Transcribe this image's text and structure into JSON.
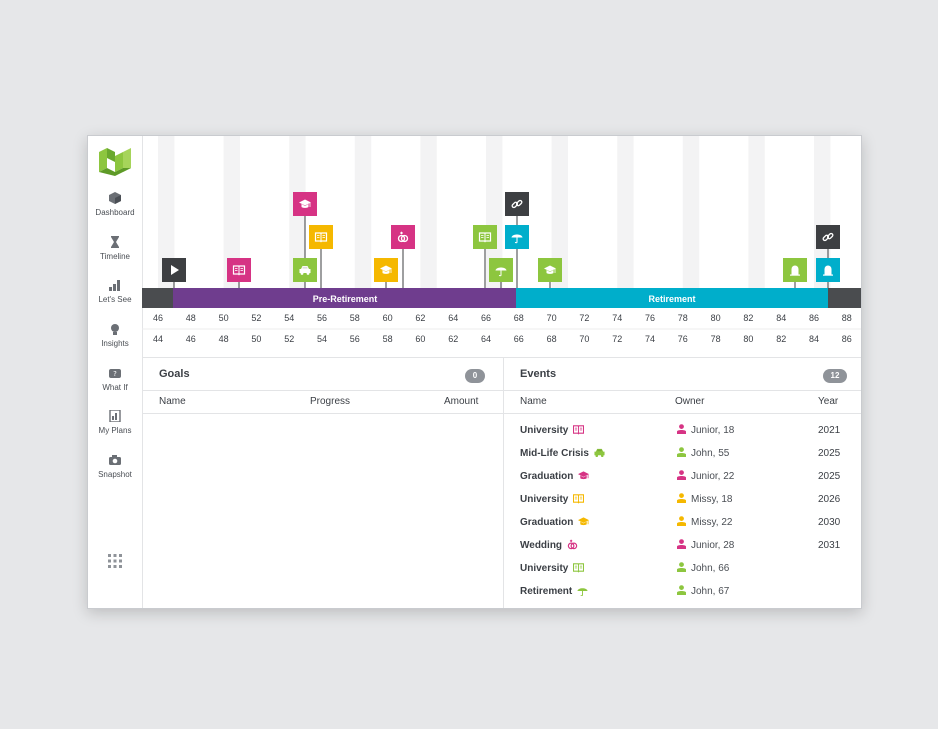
{
  "sidebar": {
    "items": [
      {
        "label": "Dashboard",
        "icon": "cube-icon"
      },
      {
        "label": "Timeline",
        "icon": "hourglass-icon"
      },
      {
        "label": "Let's See",
        "icon": "bar-chart-icon"
      },
      {
        "label": "Insights",
        "icon": "lightbulb-icon"
      },
      {
        "label": "What If",
        "icon": "what-if-icon"
      },
      {
        "label": "My Plans",
        "icon": "plans-icon"
      },
      {
        "label": "Snapshot",
        "icon": "camera-icon"
      }
    ]
  },
  "timeline": {
    "phases": [
      {
        "label": "Pre-Retirement",
        "color": "#6f3d8e"
      },
      {
        "label": "Retirement",
        "color": "#00aecb"
      }
    ],
    "ages_row1": [
      "46",
      "48",
      "50",
      "52",
      "54",
      "56",
      "58",
      "60",
      "62",
      "64",
      "66",
      "68",
      "70",
      "72",
      "74",
      "76",
      "78",
      "80",
      "82",
      "84",
      "86",
      "88"
    ],
    "ages_row2": [
      "44",
      "46",
      "48",
      "50",
      "52",
      "54",
      "56",
      "58",
      "60",
      "62",
      "64",
      "66",
      "68",
      "70",
      "72",
      "74",
      "76",
      "78",
      "80",
      "82",
      "84",
      "86"
    ],
    "markers": [
      {
        "icon": "play-icon",
        "color": "#3d3f42"
      },
      {
        "icon": "book-icon",
        "color": "#d63384"
      },
      {
        "icon": "car-icon",
        "color": "#8dc63f"
      },
      {
        "icon": "book-icon",
        "color": "#f5b800"
      },
      {
        "icon": "graduation-icon",
        "color": "#d63384"
      },
      {
        "icon": "graduation-icon",
        "color": "#f5b800"
      },
      {
        "icon": "rings-icon",
        "color": "#d63384"
      },
      {
        "icon": "book-icon",
        "color": "#8dc63f"
      },
      {
        "icon": "umbrella-icon",
        "color": "#8dc63f"
      },
      {
        "icon": "umbrella-icon",
        "color": "#00aecb"
      },
      {
        "icon": "link-icon",
        "color": "#3d3f42"
      },
      {
        "icon": "graduation-icon",
        "color": "#8dc63f"
      },
      {
        "icon": "headstone-icon",
        "color": "#8dc63f"
      },
      {
        "icon": "headstone-icon",
        "color": "#00aecb"
      },
      {
        "icon": "link-icon",
        "color": "#3d3f42"
      }
    ]
  },
  "goals": {
    "title": "Goals",
    "count": "0",
    "columns": [
      "Name",
      "Progress",
      "Amount"
    ]
  },
  "events": {
    "title": "Events",
    "count": "12",
    "columns": [
      "Name",
      "Owner",
      "Year"
    ],
    "rows": [
      {
        "name": "University",
        "icon": "book-icon",
        "icon_color": "#d63384",
        "owner": "Junior, 18",
        "owner_color": "#d63384",
        "year": "2021"
      },
      {
        "name": "Mid-Life Crisis",
        "icon": "car-icon",
        "icon_color": "#8dc63f",
        "owner": "John, 55",
        "owner_color": "#8dc63f",
        "year": "2025"
      },
      {
        "name": "Graduation",
        "icon": "graduation-icon",
        "icon_color": "#d63384",
        "owner": "Junior, 22",
        "owner_color": "#d63384",
        "year": "2025"
      },
      {
        "name": "University",
        "icon": "book-icon",
        "icon_color": "#f5b800",
        "owner": "Missy, 18",
        "owner_color": "#f5b800",
        "year": "2026"
      },
      {
        "name": "Graduation",
        "icon": "graduation-icon",
        "icon_color": "#f5b800",
        "owner": "Missy, 22",
        "owner_color": "#f5b800",
        "year": "2030"
      },
      {
        "name": "Wedding",
        "icon": "rings-icon",
        "icon_color": "#d63384",
        "owner": "Junior, 28",
        "owner_color": "#d63384",
        "year": "2031"
      },
      {
        "name": "University",
        "icon": "book-icon",
        "icon_color": "#8dc63f",
        "owner": "John, 66",
        "owner_color": "#8dc63f",
        "year": ""
      },
      {
        "name": "Retirement",
        "icon": "umbrella-icon",
        "icon_color": "#8dc63f",
        "owner": "John, 67",
        "owner_color": "#8dc63f",
        "year": ""
      }
    ]
  },
  "colors": {
    "accent_green": "#8dc63f",
    "pink": "#d63384",
    "yellow": "#f5b800",
    "teal": "#00aecb",
    "purple": "#6f3d8e",
    "dark": "#3d3f42"
  }
}
